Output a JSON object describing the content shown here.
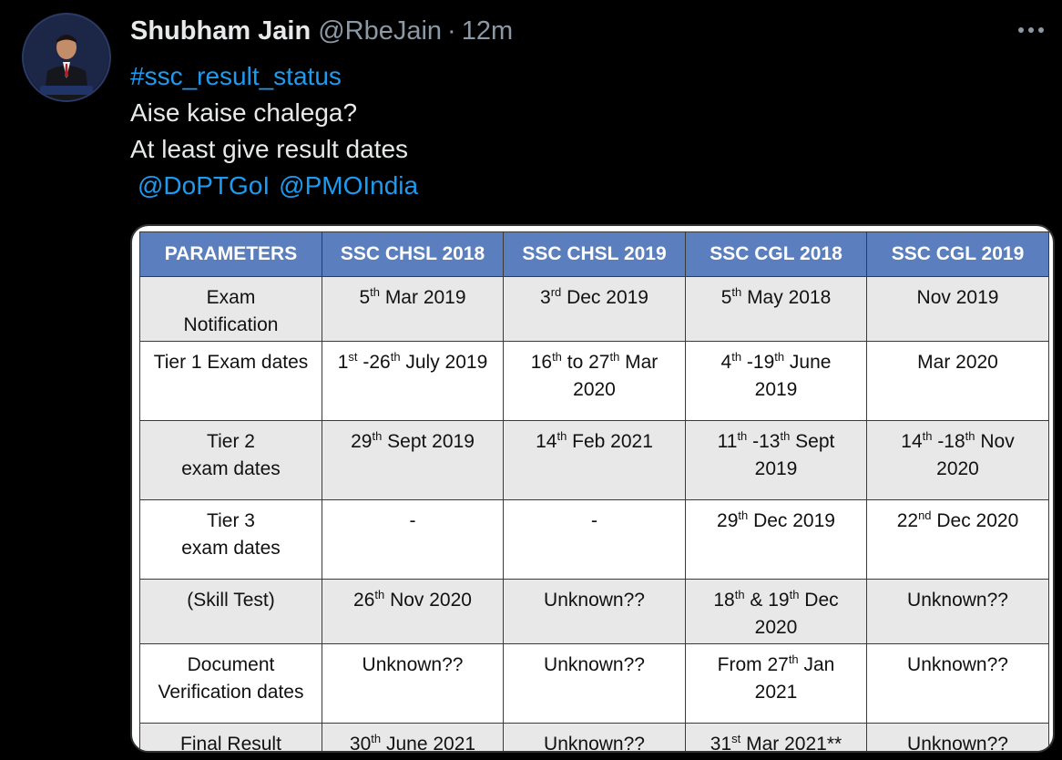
{
  "tweet": {
    "author": {
      "display_name": "Shubham Jain",
      "handle": "@RbeJain",
      "separator": "·",
      "time": "12m"
    },
    "hashtag": "#ssc_result_status",
    "lines": [
      "Aise kaise chalega?",
      "At least give result dates"
    ],
    "mentions": [
      "@DoPTGoI",
      "@PMOIndia"
    ]
  },
  "icons": {
    "more": "more-horizontal-icon",
    "avatar": "profile-photo"
  },
  "colors": {
    "background": "#000000",
    "link": "#1d9bf0",
    "muted": "#8b98a5",
    "table_header": "#5b7fbe"
  },
  "table": {
    "headers": [
      "PARAMETERS",
      "SSC CHSL 2018",
      "SSC CHSL 2019",
      "SSC CGL 2018",
      "SSC CGL 2019"
    ],
    "rows": [
      [
        "Exam\nNotification",
        "5^th Mar 2019",
        "3^rd Dec 2019",
        "5^th May 2018",
        "Nov 2019"
      ],
      [
        "Tier 1 Exam dates",
        "1^st -26^th July 2019",
        "16^th to 27^th Mar\n2020",
        "4^th -19^th June\n2019",
        "Mar 2020"
      ],
      [
        "Tier 2\nexam dates",
        "29^th Sept 2019",
        "14^th Feb 2021",
        "11^th -13^th Sept\n2019",
        "14^th -18^th Nov\n2020"
      ],
      [
        "Tier 3\nexam dates",
        "-",
        "-",
        "29^th Dec 2019",
        "22^nd Dec 2020"
      ],
      [
        "(Skill Test)",
        "26^th Nov 2020",
        "Unknown??",
        "18^th & 19^th Dec\n2020",
        "Unknown??"
      ],
      [
        "Document\nVerification dates",
        "Unknown??",
        "Unknown??",
        "From 27^th Jan\n2021",
        "Unknown??"
      ],
      [
        "Final Result",
        "30^th June 2021",
        "Unknown??",
        "31^st Mar 2021**",
        "Unknown??"
      ]
    ]
  }
}
